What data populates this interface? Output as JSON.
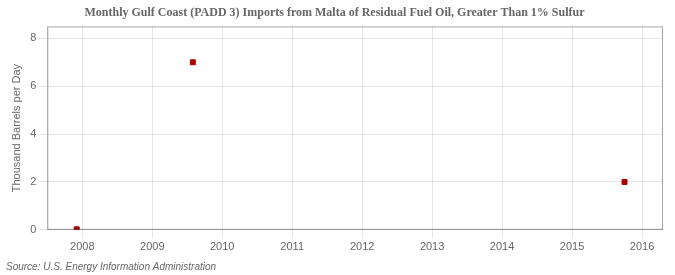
{
  "chart_data": {
    "type": "scatter",
    "title": "Monthly Gulf Coast (PADD 3) Imports from Malta of Residual Fuel Oil, Greater Than 1% Sulfur",
    "ylabel": "Thousand Barrels per Day",
    "annotations": [
      "Source: U.S. Energy Information Administration"
    ],
    "x": [
      2007.92,
      2009.58,
      2015.75
    ],
    "values": [
      0.02,
      7.0,
      2.0
    ],
    "color": "#aa0000",
    "marker": "square",
    "xlim": [
      2007.5,
      2016.3
    ],
    "ylim": [
      0,
      8.5
    ],
    "xticks": [
      2008,
      2009,
      2010,
      2011,
      2012,
      2013,
      2014,
      2015,
      2016
    ],
    "yticks": [
      0,
      2,
      4,
      6,
      8
    ],
    "grid": true
  }
}
